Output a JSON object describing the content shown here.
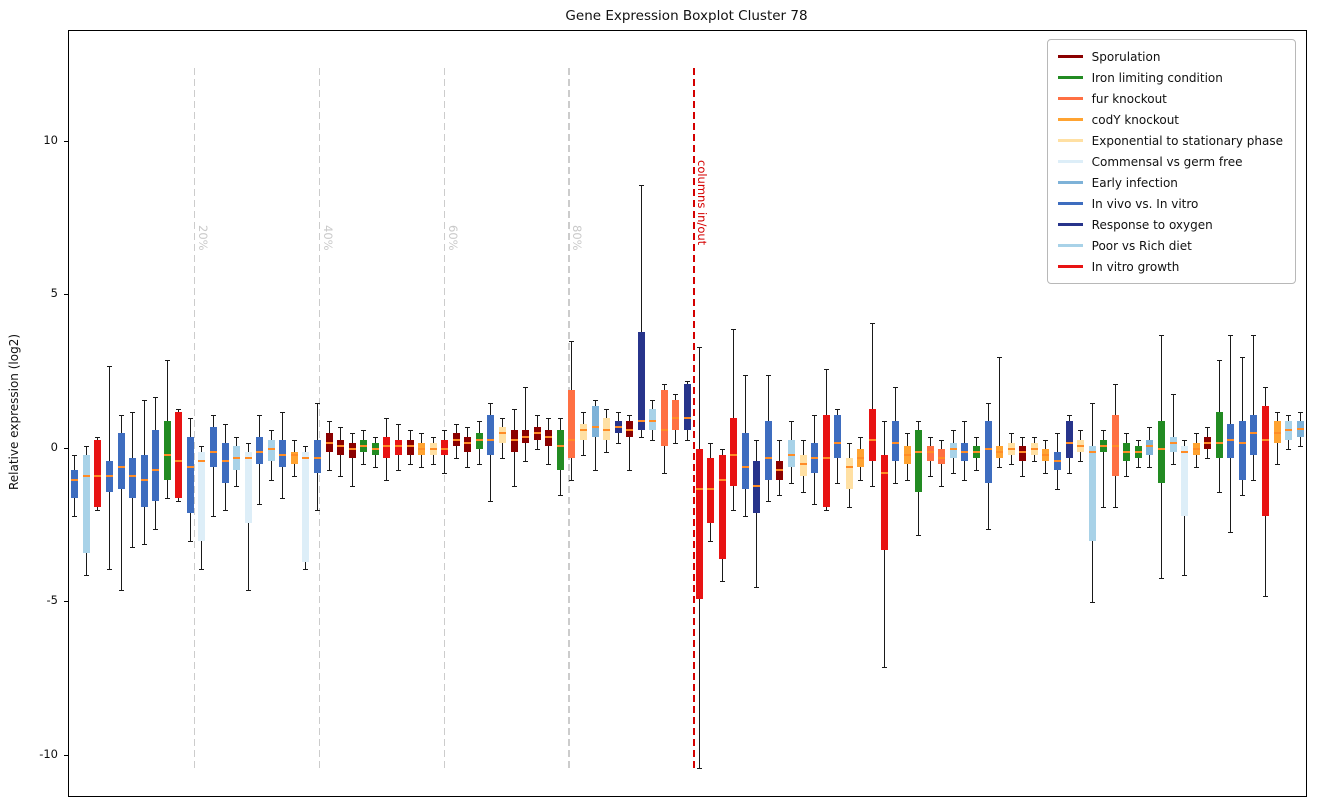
{
  "chart_data": {
    "type": "boxplot",
    "title": "Gene Expression Boxplot Cluster 78",
    "xlabel": "",
    "ylabel": "Relative expression (log2)",
    "yticks": [
      -10,
      -5,
      0,
      5,
      10
    ],
    "ylim": [
      -11.3,
      13.6
    ],
    "grid": false,
    "legend_position": "upper right",
    "median_color": "#ff8c26",
    "whisker_color": "#1a1a1a",
    "conditions": [
      {
        "label": "Sporulation",
        "color": "#8B0000"
      },
      {
        "label": "Iron limiting condition",
        "color": "#228B22"
      },
      {
        "label": "fur knockout",
        "color": "#FF7043"
      },
      {
        "label": "codY knockout",
        "color": "#FFA331"
      },
      {
        "label": "Exponential to stationary phase",
        "color": "#FFE0A3"
      },
      {
        "label": "Commensal vs germ free",
        "color": "#DDEEF8"
      },
      {
        "label": "Early infection",
        "color": "#7EB2D8"
      },
      {
        "label": "In vivo vs. In vitro",
        "color": "#3E6DBF"
      },
      {
        "label": "Response to oxygen",
        "color": "#27348B"
      },
      {
        "label": "Poor vs Rich diet",
        "color": "#A8D2E8"
      },
      {
        "label": "In vitro growth",
        "color": "#E81313"
      }
    ],
    "percent_lines": [
      {
        "label": "20%",
        "pos": 10.8
      },
      {
        "label": "40%",
        "pos": 21.6
      },
      {
        "label": "60%",
        "pos": 32.4
      },
      {
        "label": "80%",
        "pos": 43.2
      }
    ],
    "divider": {
      "label": "columns in/out",
      "pos": 54.0,
      "color": "#d40000"
    },
    "line_span": [
      12.4,
      -10.5
    ],
    "box_format": [
      "condition_index",
      "whisker_low",
      "q1",
      "median",
      "q3",
      "whisker_high"
    ],
    "boxes": [
      [
        7,
        -2.2,
        -1.6,
        -1.0,
        -0.7,
        -0.2
      ],
      [
        9,
        -4.1,
        -3.4,
        -0.9,
        -0.2,
        0.1
      ],
      [
        10,
        -2.0,
        -1.9,
        -0.9,
        0.3,
        0.4
      ],
      [
        7,
        -3.9,
        -1.4,
        -0.9,
        -0.4,
        2.7
      ],
      [
        7,
        -4.6,
        -1.3,
        -0.6,
        0.5,
        1.1
      ],
      [
        7,
        -3.2,
        -1.6,
        -0.9,
        -0.3,
        1.2
      ],
      [
        7,
        -3.1,
        -1.9,
        -1.0,
        -0.2,
        1.6
      ],
      [
        7,
        -2.6,
        -1.7,
        -0.7,
        0.6,
        1.7
      ],
      [
        1,
        -1.6,
        -1.0,
        -0.2,
        0.9,
        2.9
      ],
      [
        10,
        -1.7,
        -1.6,
        -0.4,
        1.2,
        1.3
      ],
      [
        7,
        -3.0,
        -2.1,
        -0.6,
        0.4,
        1.0
      ],
      [
        5,
        -3.9,
        -3.0,
        -0.4,
        -0.1,
        0.1
      ],
      [
        7,
        -2.2,
        -0.6,
        -0.1,
        0.7,
        1.1
      ],
      [
        7,
        -2.0,
        -1.1,
        -0.4,
        0.2,
        0.8
      ],
      [
        9,
        -1.2,
        -0.7,
        -0.3,
        0.1,
        0.4
      ],
      [
        5,
        -4.6,
        -2.4,
        -0.3,
        -0.1,
        0.2
      ],
      [
        7,
        -1.8,
        -0.5,
        -0.1,
        0.4,
        1.1
      ],
      [
        9,
        -1.0,
        -0.4,
        0.0,
        0.3,
        0.6
      ],
      [
        7,
        -1.6,
        -0.6,
        -0.2,
        0.3,
        1.2
      ],
      [
        3,
        -0.9,
        -0.5,
        -0.2,
        -0.1,
        0.3
      ],
      [
        5,
        -3.9,
        -3.7,
        -0.3,
        -0.1,
        0.1
      ],
      [
        7,
        -2.0,
        -0.8,
        -0.3,
        0.3,
        1.5
      ],
      [
        0,
        -0.7,
        -0.1,
        0.2,
        0.5,
        0.9
      ],
      [
        0,
        -0.9,
        -0.2,
        0.1,
        0.3,
        0.7
      ],
      [
        0,
        -1.2,
        -0.3,
        0.0,
        0.2,
        0.5
      ],
      [
        1,
        -0.5,
        -0.1,
        0.1,
        0.3,
        0.6
      ],
      [
        1,
        -0.6,
        -0.2,
        0.0,
        0.2,
        0.4
      ],
      [
        10,
        -1.0,
        -0.3,
        0.1,
        0.4,
        1.0
      ],
      [
        10,
        -0.7,
        -0.2,
        0.1,
        0.3,
        0.8
      ],
      [
        0,
        -0.5,
        -0.2,
        0.1,
        0.3,
        0.6
      ],
      [
        3,
        -0.6,
        -0.2,
        0.0,
        0.2,
        0.5
      ],
      [
        4,
        -0.5,
        -0.2,
        0.0,
        0.2,
        0.4
      ],
      [
        10,
        -0.8,
        -0.2,
        0.0,
        0.3,
        0.6
      ],
      [
        0,
        -0.3,
        0.1,
        0.3,
        0.5,
        0.8
      ],
      [
        0,
        -0.6,
        -0.1,
        0.2,
        0.4,
        0.7
      ],
      [
        1,
        -0.5,
        0.0,
        0.3,
        0.5,
        0.9
      ],
      [
        7,
        -1.7,
        -0.2,
        0.3,
        1.1,
        1.5
      ],
      [
        4,
        -0.3,
        0.2,
        0.5,
        0.7,
        1.0
      ],
      [
        0,
        -1.2,
        -0.1,
        0.3,
        0.6,
        1.3
      ],
      [
        0,
        -0.4,
        0.2,
        0.4,
        0.6,
        2.0
      ],
      [
        0,
        0.0,
        0.3,
        0.5,
        0.7,
        1.1
      ],
      [
        0,
        -0.5,
        0.1,
        0.4,
        0.6,
        1.0
      ],
      [
        1,
        -1.5,
        -0.7,
        0.1,
        0.6,
        1.0
      ],
      [
        2,
        -1.0,
        -0.3,
        0.3,
        1.9,
        3.5
      ],
      [
        4,
        -0.2,
        0.3,
        0.6,
        0.8,
        1.2
      ],
      [
        6,
        -0.7,
        0.4,
        0.7,
        1.4,
        1.6
      ],
      [
        4,
        -0.1,
        0.3,
        0.6,
        1.0,
        1.3
      ],
      [
        8,
        0.2,
        0.5,
        0.7,
        0.9,
        1.2
      ],
      [
        0,
        -0.7,
        0.4,
        0.6,
        0.9,
        1.1
      ],
      [
        8,
        0.4,
        0.6,
        0.9,
        3.8,
        8.6
      ],
      [
        9,
        0.3,
        0.6,
        0.9,
        1.3,
        1.6
      ],
      [
        2,
        -0.8,
        0.1,
        0.6,
        1.9,
        2.1
      ],
      [
        2,
        0.2,
        0.6,
        1.0,
        1.6,
        1.8
      ],
      [
        8,
        0.3,
        0.6,
        1.0,
        2.1,
        2.2
      ],
      [
        10,
        -10.4,
        -4.9,
        -1.3,
        0.0,
        3.3
      ],
      [
        10,
        -3.0,
        -2.4,
        -1.3,
        -0.3,
        0.2
      ],
      [
        10,
        -4.3,
        -3.6,
        -1.0,
        -0.2,
        0.0
      ],
      [
        10,
        -2.0,
        -1.2,
        -0.2,
        1.0,
        3.9
      ],
      [
        7,
        -2.2,
        -1.3,
        -0.6,
        0.5,
        2.4
      ],
      [
        8,
        -4.5,
        -2.1,
        -1.2,
        -0.4,
        0.3
      ],
      [
        7,
        -1.7,
        -1.0,
        -0.3,
        0.9,
        2.4
      ],
      [
        0,
        -1.5,
        -1.0,
        -0.7,
        -0.4,
        0.3
      ],
      [
        9,
        -1.1,
        -0.6,
        -0.2,
        0.3,
        0.9
      ],
      [
        4,
        -1.4,
        -0.9,
        -0.5,
        -0.2,
        0.3
      ],
      [
        7,
        -1.8,
        -0.8,
        -0.3,
        0.2,
        1.1
      ],
      [
        10,
        -2.0,
        -1.9,
        -0.3,
        1.1,
        2.6
      ],
      [
        7,
        -1.1,
        -0.3,
        0.2,
        1.1,
        1.3
      ],
      [
        4,
        -1.9,
        -1.3,
        -0.6,
        -0.3,
        0.2
      ],
      [
        3,
        -1.0,
        -0.6,
        -0.3,
        0.0,
        0.4
      ],
      [
        10,
        -1.2,
        -0.4,
        0.3,
        1.3,
        4.1
      ],
      [
        10,
        -7.1,
        -3.3,
        -0.8,
        -0.2,
        0.9
      ],
      [
        7,
        -1.1,
        -0.4,
        0.2,
        0.9,
        2.0
      ],
      [
        3,
        -1.0,
        -0.5,
        -0.2,
        0.1,
        0.5
      ],
      [
        1,
        -2.8,
        -1.4,
        -0.1,
        0.6,
        0.9
      ],
      [
        2,
        -0.9,
        -0.4,
        -0.1,
        0.1,
        0.4
      ],
      [
        2,
        -1.2,
        -0.5,
        -0.3,
        0.0,
        0.3
      ],
      [
        9,
        -0.8,
        -0.3,
        0.0,
        0.2,
        0.6
      ],
      [
        7,
        -1.0,
        -0.4,
        -0.1,
        0.2,
        0.9
      ],
      [
        1,
        -0.7,
        -0.3,
        -0.1,
        0.1,
        0.4
      ],
      [
        7,
        -2.6,
        -1.1,
        0.0,
        0.9,
        1.5
      ],
      [
        3,
        -0.6,
        -0.3,
        -0.1,
        0.1,
        3.0
      ],
      [
        4,
        -0.5,
        -0.2,
        0.0,
        0.2,
        0.5
      ],
      [
        0,
        -0.9,
        -0.4,
        -0.1,
        0.1,
        0.4
      ],
      [
        4,
        -0.4,
        -0.2,
        0.0,
        0.2,
        0.4
      ],
      [
        3,
        -0.8,
        -0.4,
        -0.2,
        0.0,
        0.3
      ],
      [
        7,
        -1.3,
        -0.7,
        -0.4,
        -0.1,
        0.5
      ],
      [
        8,
        -0.8,
        -0.3,
        0.2,
        0.9,
        1.1
      ],
      [
        4,
        -0.4,
        -0.1,
        0.1,
        0.3,
        0.6
      ],
      [
        9,
        -5.0,
        -3.0,
        -0.1,
        0.1,
        1.5
      ],
      [
        1,
        -1.9,
        -0.1,
        0.1,
        0.3,
        0.6
      ],
      [
        2,
        -1.9,
        -0.9,
        0.1,
        1.1,
        2.1
      ],
      [
        1,
        -0.9,
        -0.4,
        -0.1,
        0.2,
        0.5
      ],
      [
        1,
        -0.6,
        -0.3,
        -0.1,
        0.1,
        0.3
      ],
      [
        6,
        -0.6,
        -0.2,
        0.1,
        0.3,
        0.7
      ],
      [
        1,
        -4.2,
        -1.1,
        0.0,
        0.9,
        3.7
      ],
      [
        9,
        -0.5,
        -0.1,
        0.2,
        0.4,
        1.8
      ],
      [
        5,
        -4.1,
        -2.2,
        -0.1,
        0.1,
        0.3
      ],
      [
        3,
        -0.6,
        -0.2,
        0.0,
        0.2,
        0.5
      ],
      [
        0,
        -0.3,
        0.0,
        0.2,
        0.4,
        0.7
      ],
      [
        1,
        -1.4,
        -0.3,
        0.2,
        1.2,
        2.9
      ],
      [
        7,
        -2.7,
        -0.3,
        0.3,
        0.8,
        3.7
      ],
      [
        7,
        -1.5,
        -1.0,
        0.2,
        0.9,
        3.0
      ],
      [
        7,
        -1.0,
        -0.2,
        0.5,
        1.1,
        3.7
      ],
      [
        10,
        -4.8,
        -2.2,
        0.3,
        1.4,
        2.0
      ],
      [
        3,
        -0.5,
        0.2,
        0.5,
        0.9,
        1.2
      ],
      [
        9,
        0.0,
        0.3,
        0.6,
        0.9,
        1.1
      ],
      [
        6,
        0.1,
        0.4,
        0.65,
        0.9,
        1.2
      ]
    ]
  }
}
